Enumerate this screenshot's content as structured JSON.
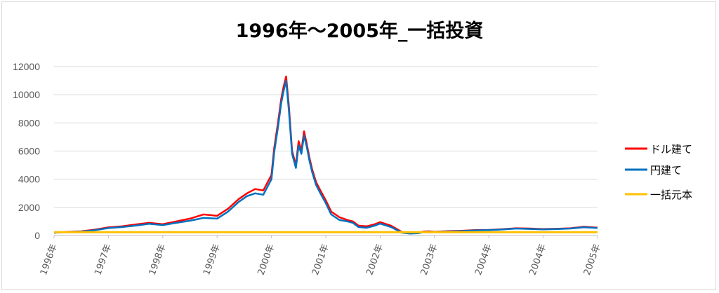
{
  "chart_data": {
    "type": "line",
    "title": "1996年～2005年_一括投資",
    "xlabel": "",
    "ylabel": "",
    "ylim": [
      0,
      12000
    ],
    "y_ticks": [
      0,
      2000,
      4000,
      6000,
      8000,
      10000,
      12000
    ],
    "x_tick_labels": [
      "1996年",
      "1997年",
      "1998年",
      "1999年",
      "2000年",
      "2001年",
      "2002年",
      "2003年",
      "2004年",
      "2004年",
      "2005年"
    ],
    "grid": true,
    "legend_position": "right",
    "x": [
      0,
      0.25,
      0.5,
      0.75,
      1.0,
      1.25,
      1.5,
      1.75,
      2.0,
      2.25,
      2.5,
      2.75,
      3.0,
      3.2,
      3.4,
      3.55,
      3.7,
      3.85,
      4.0,
      4.05,
      4.12,
      4.18,
      4.22,
      4.27,
      4.32,
      4.38,
      4.45,
      4.5,
      4.55,
      4.6,
      4.65,
      4.7,
      4.75,
      4.82,
      4.9,
      5.0,
      5.1,
      5.25,
      5.4,
      5.5,
      5.6,
      5.75,
      5.9,
      6.0,
      6.2,
      6.4,
      6.55,
      6.7,
      6.8,
      6.9,
      7.0,
      7.25,
      7.5,
      7.75,
      8.0,
      8.25,
      8.5,
      8.75,
      9.0,
      9.25,
      9.5,
      9.75,
      10.0
    ],
    "series": [
      {
        "name": "ドル建て",
        "color": "#ff0000",
        "values": [
          200,
          260,
          300,
          420,
          580,
          650,
          780,
          900,
          800,
          1000,
          1200,
          1500,
          1400,
          1900,
          2600,
          3000,
          3300,
          3200,
          4300,
          6200,
          8000,
          9700,
          10500,
          11300,
          9200,
          6000,
          5000,
          6700,
          6000,
          7400,
          6500,
          5500,
          4700,
          3800,
          3200,
          2500,
          1700,
          1300,
          1100,
          1000,
          700,
          650,
          800,
          950,
          700,
          250,
          170,
          190,
          290,
          300,
          270,
          310,
          340,
          390,
          400,
          450,
          520,
          500,
          460,
          480,
          520,
          620,
          560
        ]
      },
      {
        "name": "円建て",
        "color": "#0070c0",
        "values": [
          200,
          250,
          280,
          380,
          530,
          600,
          700,
          830,
          740,
          900,
          1050,
          1250,
          1200,
          1700,
          2400,
          2800,
          3000,
          2900,
          4000,
          5900,
          7700,
          9400,
          10200,
          11000,
          8900,
          5800,
          4800,
          6400,
          5800,
          7100,
          6300,
          5300,
          4500,
          3600,
          3000,
          2300,
          1500,
          1100,
          1000,
          900,
          600,
          550,
          700,
          850,
          600,
          200,
          140,
          160,
          250,
          270,
          250,
          290,
          320,
          370,
          390,
          430,
          500,
          470,
          440,
          460,
          500,
          590,
          540
        ]
      },
      {
        "name": "一括元本",
        "color": "#ffc000",
        "values": [
          240,
          240,
          240,
          240,
          240,
          240,
          240,
          240,
          240,
          240,
          240,
          240,
          240,
          240,
          240,
          240,
          240,
          240,
          240,
          240,
          240,
          240,
          240,
          240,
          240,
          240,
          240,
          240,
          240,
          240,
          240,
          240,
          240,
          240,
          240,
          240,
          240,
          240,
          240,
          240,
          240,
          240,
          240,
          240,
          240,
          240,
          240,
          240,
          240,
          240,
          240,
          240,
          240,
          240,
          240,
          240,
          240,
          240,
          240,
          240,
          240,
          240,
          240
        ]
      }
    ]
  }
}
